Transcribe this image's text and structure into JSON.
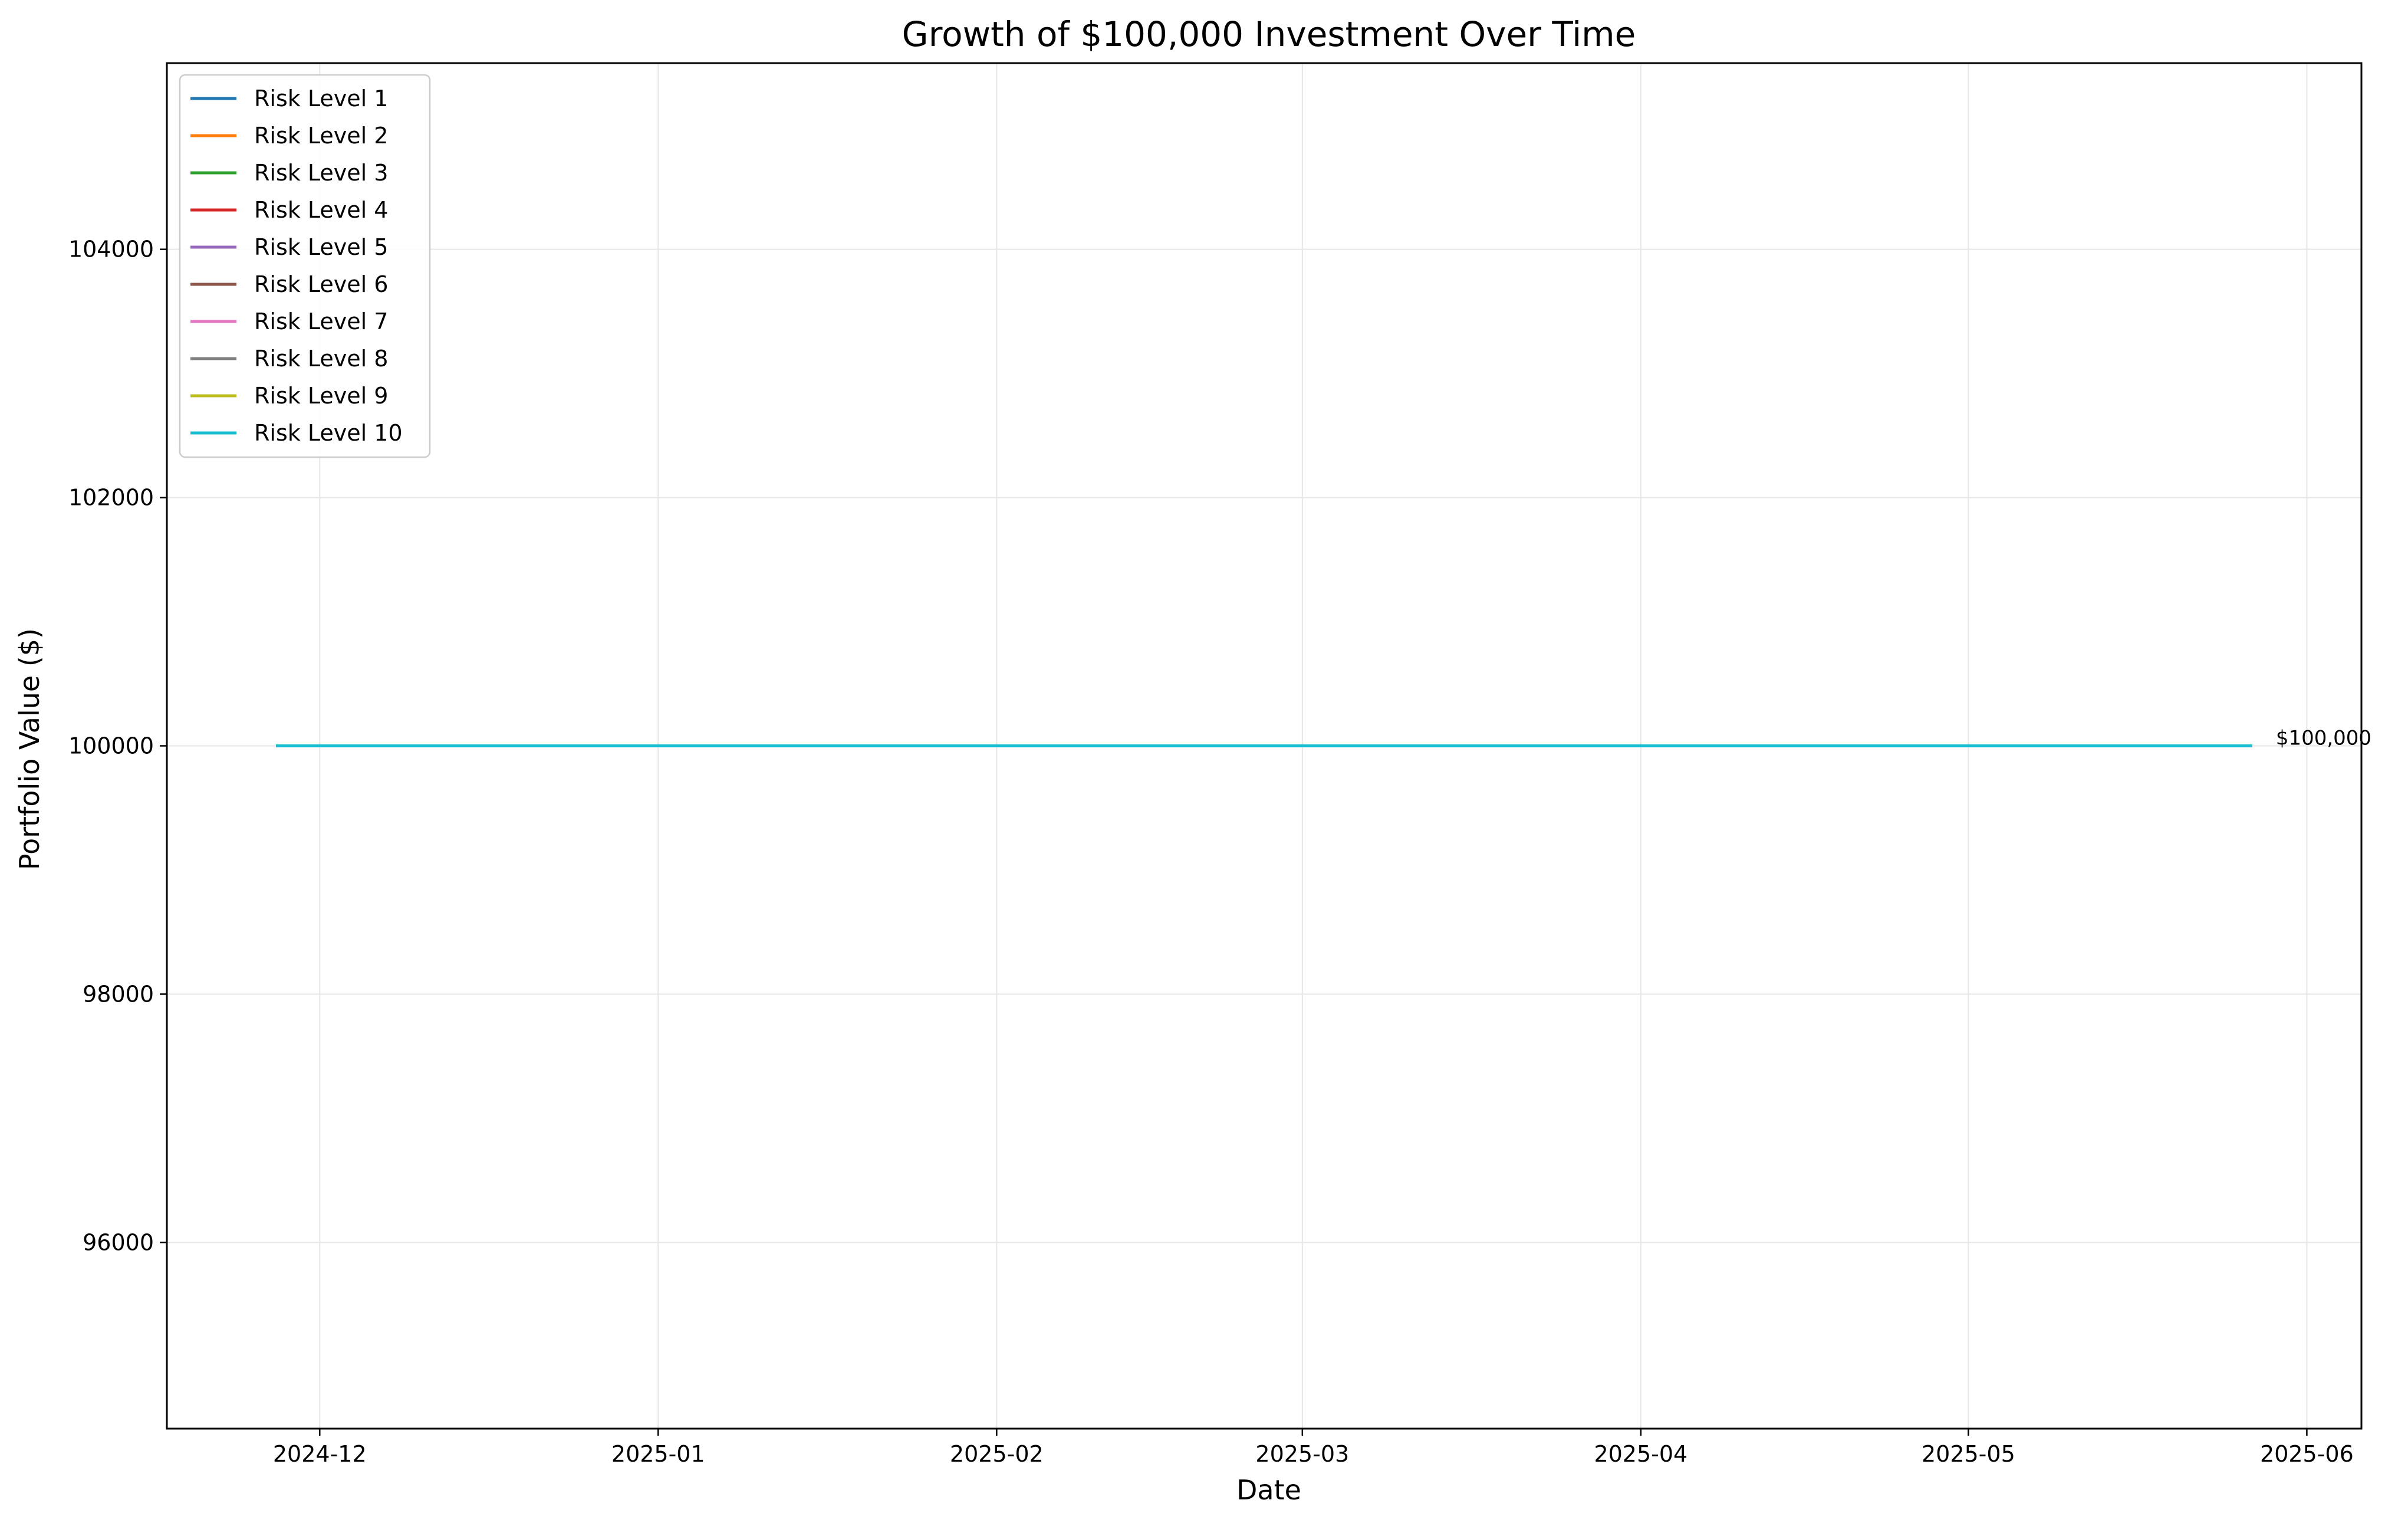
{
  "chart_data": {
    "type": "line",
    "title": "Growth of $100,000 Investment Over Time",
    "xlabel": "Date",
    "ylabel": "Portfolio Value ($)",
    "x_range": [
      "2024-11-27",
      "2025-05-27"
    ],
    "xlim": [
      "2024-11-17",
      "2025-06-06"
    ],
    "ylim": [
      94500,
      105500
    ],
    "x_ticks": [
      {
        "date": "2024-12-01",
        "label": "2024-12"
      },
      {
        "date": "2025-01-01",
        "label": "2025-01"
      },
      {
        "date": "2025-02-01",
        "label": "2025-02"
      },
      {
        "date": "2025-03-01",
        "label": "2025-03"
      },
      {
        "date": "2025-04-01",
        "label": "2025-04"
      },
      {
        "date": "2025-05-01",
        "label": "2025-05"
      },
      {
        "date": "2025-06-01",
        "label": "2025-06"
      }
    ],
    "y_ticks": [
      96000,
      98000,
      100000,
      102000,
      104000
    ],
    "grid": true,
    "legend_position": "upper-left",
    "series": [
      {
        "name": "Risk Level 1",
        "color": "#1f77b4",
        "x": [
          "2024-11-27",
          "2025-05-27"
        ],
        "y": [
          100000,
          100000
        ]
      },
      {
        "name": "Risk Level 2",
        "color": "#ff7f0e",
        "x": [
          "2024-11-27",
          "2025-05-27"
        ],
        "y": [
          100000,
          100000
        ]
      },
      {
        "name": "Risk Level 3",
        "color": "#2ca02c",
        "x": [
          "2024-11-27",
          "2025-05-27"
        ],
        "y": [
          100000,
          100000
        ]
      },
      {
        "name": "Risk Level 4",
        "color": "#d62728",
        "x": [
          "2024-11-27",
          "2025-05-27"
        ],
        "y": [
          100000,
          100000
        ]
      },
      {
        "name": "Risk Level 5",
        "color": "#9467bd",
        "x": [
          "2024-11-27",
          "2025-05-27"
        ],
        "y": [
          100000,
          100000
        ]
      },
      {
        "name": "Risk Level 6",
        "color": "#8c564b",
        "x": [
          "2024-11-27",
          "2025-05-27"
        ],
        "y": [
          100000,
          100000
        ]
      },
      {
        "name": "Risk Level 7",
        "color": "#e377c2",
        "x": [
          "2024-11-27",
          "2025-05-27"
        ],
        "y": [
          100000,
          100000
        ]
      },
      {
        "name": "Risk Level 8",
        "color": "#7f7f7f",
        "x": [
          "2024-11-27",
          "2025-05-27"
        ],
        "y": [
          100000,
          100000
        ]
      },
      {
        "name": "Risk Level 9",
        "color": "#bcbd22",
        "x": [
          "2024-11-27",
          "2025-05-27"
        ],
        "y": [
          100000,
          100000
        ]
      },
      {
        "name": "Risk Level 10",
        "color": "#17becf",
        "x": [
          "2024-11-27",
          "2025-05-27"
        ],
        "y": [
          100000,
          100000
        ]
      }
    ],
    "annotations": [
      {
        "text": "$100,000",
        "date": "2025-05-27",
        "value": 100000
      }
    ]
  }
}
